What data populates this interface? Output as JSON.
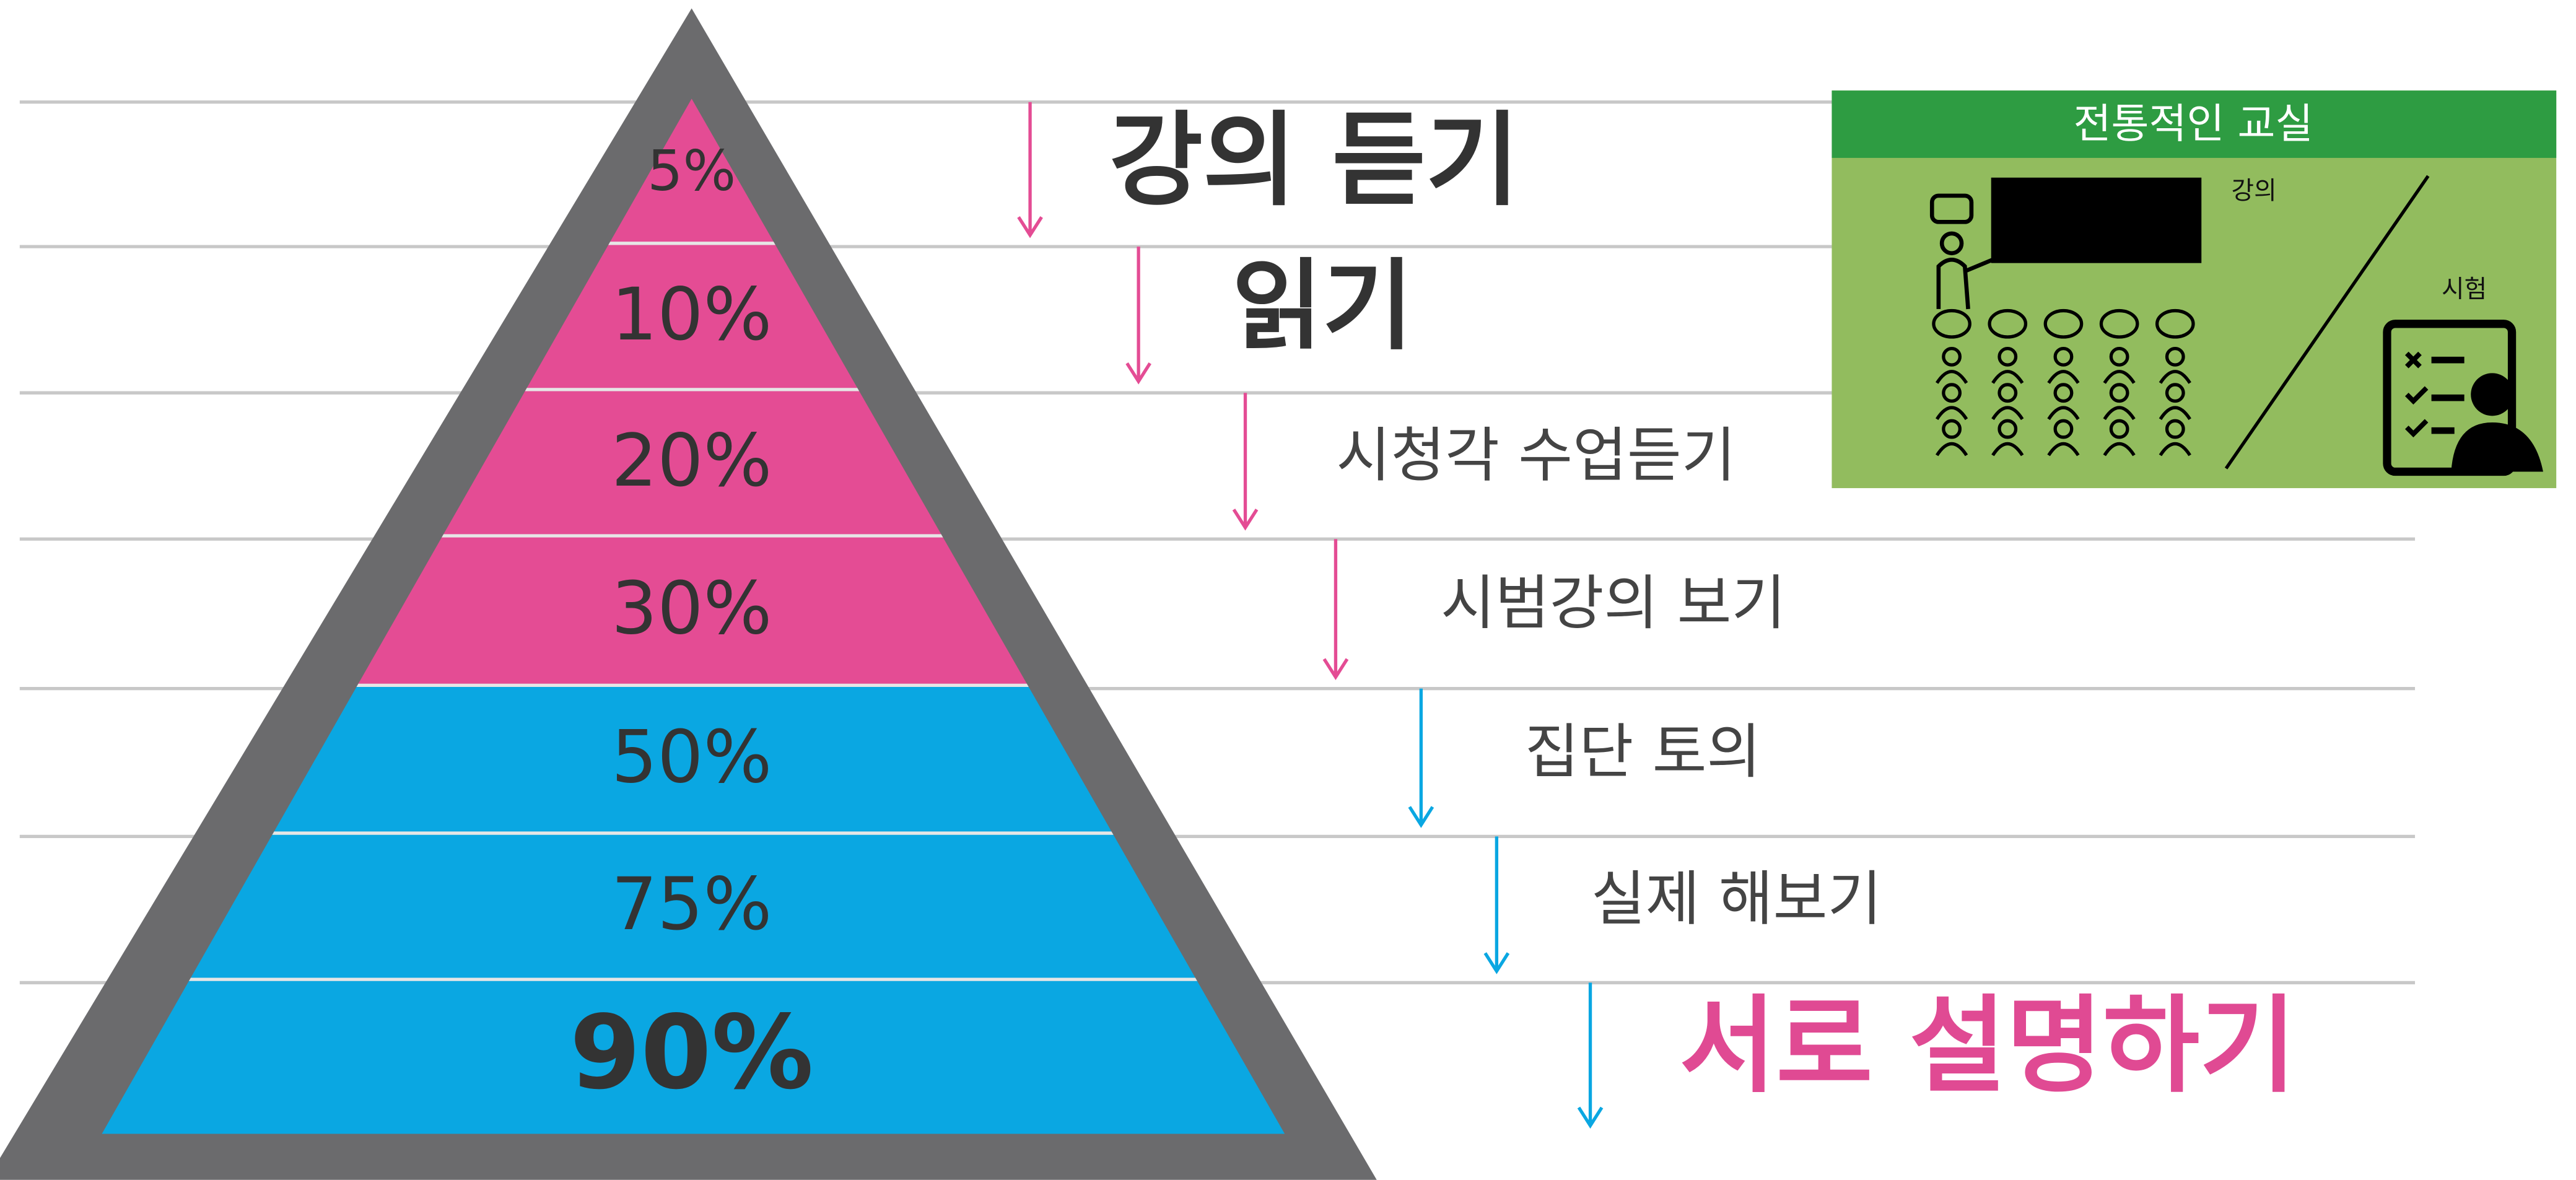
{
  "title_box": {
    "title": "전통적인 교실",
    "lecture": "강의",
    "exam": "시험"
  },
  "levels": [
    {
      "percent": "5%",
      "activity": "강의 듣기"
    },
    {
      "percent": "10%",
      "activity": "읽기"
    },
    {
      "percent": "20%",
      "activity": "시청각 수업듣기"
    },
    {
      "percent": "30%",
      "activity": "시범강의 보기"
    },
    {
      "percent": "50%",
      "activity": "집단 토의"
    },
    {
      "percent": "75%",
      "activity": "실제 해보기"
    },
    {
      "percent": "90%",
      "activity": "서로 설명하기"
    }
  ]
}
